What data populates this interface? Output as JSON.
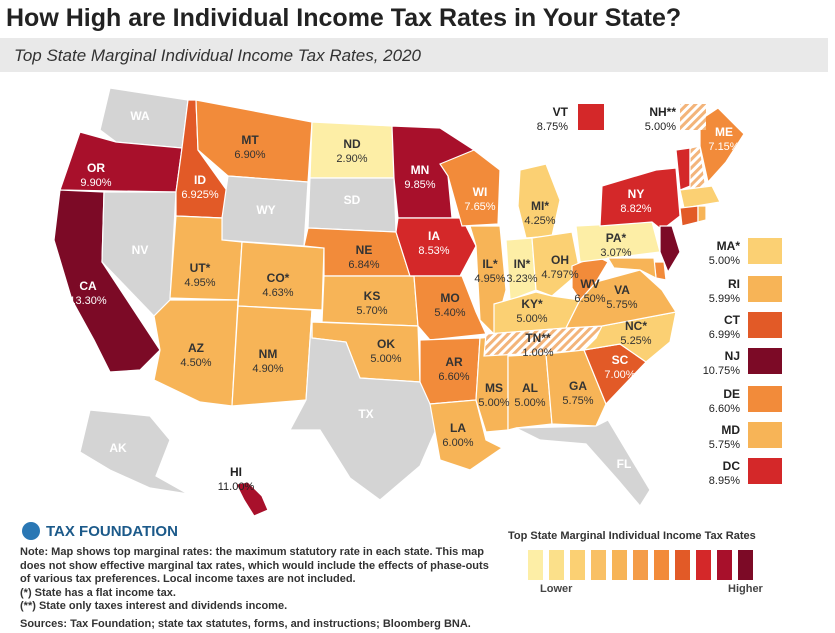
{
  "title": "How High are Individual Income Tax Rates in Your State?",
  "subtitle": "Top State Marginal Individual Income Tax Rates, 2020",
  "colors": {
    "none": "#d4d4d4",
    "c1": "#fdeea6",
    "c2": "#fbd073",
    "c3": "#f7b457",
    "c4": "#f28b3a",
    "c5": "#e25a27",
    "c6": "#d42829",
    "c7": "#a8102b",
    "c8": "#7c0a26"
  },
  "states": [
    {
      "abbr": "WA",
      "rate": ""
    },
    {
      "abbr": "OR",
      "rate": "9.90%"
    },
    {
      "abbr": "CA",
      "rate": "13.30%"
    },
    {
      "abbr": "NV",
      "rate": ""
    },
    {
      "abbr": "ID",
      "rate": "6.925%"
    },
    {
      "abbr": "MT",
      "rate": "6.90%"
    },
    {
      "abbr": "WY",
      "rate": ""
    },
    {
      "abbr": "UT*",
      "rate": "4.95%"
    },
    {
      "abbr": "AZ",
      "rate": "4.50%"
    },
    {
      "abbr": "CO*",
      "rate": "4.63%"
    },
    {
      "abbr": "NM",
      "rate": "4.90%"
    },
    {
      "abbr": "ND",
      "rate": "2.90%"
    },
    {
      "abbr": "SD",
      "rate": ""
    },
    {
      "abbr": "NE",
      "rate": "6.84%"
    },
    {
      "abbr": "KS",
      "rate": "5.70%"
    },
    {
      "abbr": "OK",
      "rate": "5.00%"
    },
    {
      "abbr": "TX",
      "rate": ""
    },
    {
      "abbr": "MN",
      "rate": "9.85%"
    },
    {
      "abbr": "IA",
      "rate": "8.53%"
    },
    {
      "abbr": "MO",
      "rate": "5.40%"
    },
    {
      "abbr": "AR",
      "rate": "6.60%"
    },
    {
      "abbr": "LA",
      "rate": "6.00%"
    },
    {
      "abbr": "WI",
      "rate": "7.65%"
    },
    {
      "abbr": "IL*",
      "rate": "4.95%"
    },
    {
      "abbr": "MS",
      "rate": "5.00%"
    },
    {
      "abbr": "MI*",
      "rate": "4.25%"
    },
    {
      "abbr": "IN*",
      "rate": "3.23%"
    },
    {
      "abbr": "OH",
      "rate": "4.797%"
    },
    {
      "abbr": "KY*",
      "rate": "5.00%"
    },
    {
      "abbr": "TN**",
      "rate": "1.00%"
    },
    {
      "abbr": "AL",
      "rate": "5.00%"
    },
    {
      "abbr": "GA",
      "rate": "5.75%"
    },
    {
      "abbr": "FL",
      "rate": ""
    },
    {
      "abbr": "SC",
      "rate": "7.00%"
    },
    {
      "abbr": "NC*",
      "rate": "5.25%"
    },
    {
      "abbr": "VA",
      "rate": "5.75%"
    },
    {
      "abbr": "WV",
      "rate": "6.50%"
    },
    {
      "abbr": "PA*",
      "rate": "3.07%"
    },
    {
      "abbr": "NY",
      "rate": "8.82%"
    },
    {
      "abbr": "ME",
      "rate": "7.15%"
    },
    {
      "abbr": "AK",
      "rate": ""
    },
    {
      "abbr": "HI",
      "rate": "11.00%"
    }
  ],
  "callouts": [
    {
      "abbr": "VT",
      "rate": "8.75%"
    },
    {
      "abbr": "NH**",
      "rate": "5.00%"
    },
    {
      "abbr": "MA*",
      "rate": "5.00%"
    },
    {
      "abbr": "RI",
      "rate": "5.99%"
    },
    {
      "abbr": "CT",
      "rate": "6.99%"
    },
    {
      "abbr": "NJ",
      "rate": "10.75%"
    },
    {
      "abbr": "DE",
      "rate": "6.60%"
    },
    {
      "abbr": "MD",
      "rate": "5.75%"
    },
    {
      "abbr": "DC",
      "rate": "8.95%"
    }
  ],
  "logo": "TAX FOUNDATION",
  "notes": [
    "Note: Map shows top marginal rates: the maximum statutory rate in each state. This map does not show effective marginal tax rates, which would include the effects of phase-outs of various tax preferences. Local income taxes are not included.",
    "(*) State has a flat income tax.",
    "(**) State only taxes interest and dividends income.",
    "Sources: Tax Foundation; state tax statutes, forms, and instructions; Bloomberg BNA."
  ],
  "legend": {
    "title": "Top State Marginal Individual Income Tax Rates",
    "low": "Lower",
    "high": "Higher"
  }
}
